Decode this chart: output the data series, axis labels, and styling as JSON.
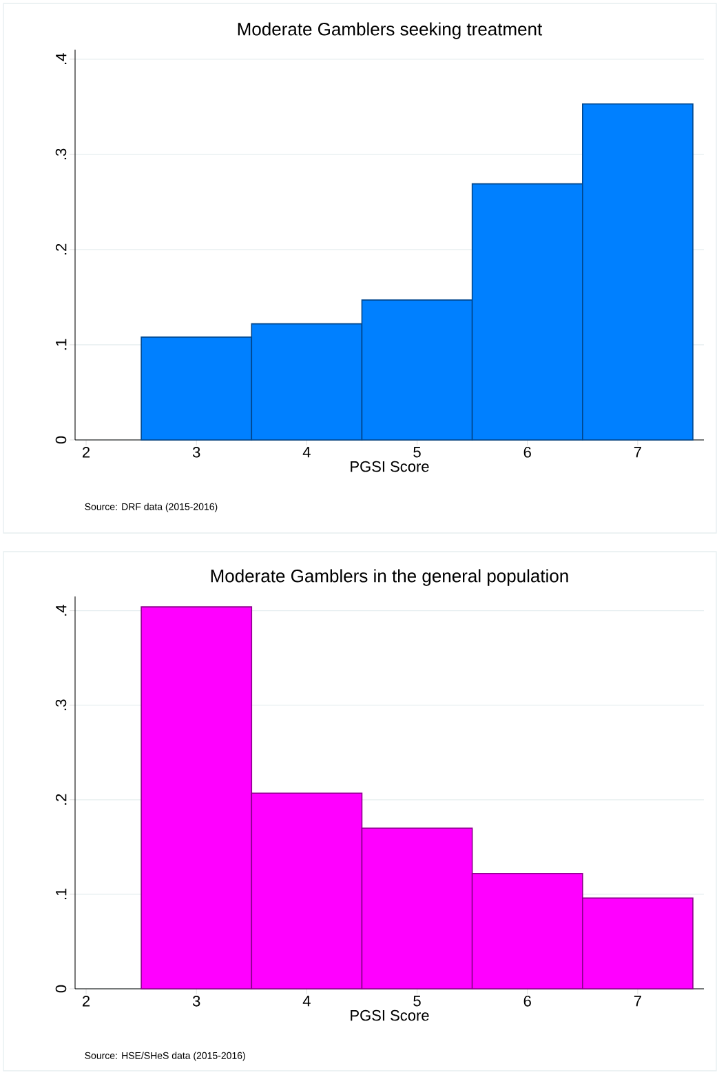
{
  "chart_data": [
    {
      "type": "histogram",
      "title": "Moderate Gamblers seeking treatment",
      "xlabel": "PGSI Score",
      "bins": [
        2.5,
        3.5,
        4.5,
        5.5,
        6.5,
        7.5
      ],
      "values": [
        0.108,
        0.122,
        0.147,
        0.269,
        0.353
      ],
      "color": "#0080ff",
      "xlim": [
        1.9,
        7.6
      ],
      "ylim": [
        0,
        0.41
      ],
      "xticks": [
        2,
        3,
        4,
        5,
        6,
        7
      ],
      "yticks": [
        0,
        {
          "value": 0.1,
          "label": ".1"
        },
        {
          "value": 0.2,
          "label": ".2"
        },
        {
          "value": 0.3,
          "label": ".3"
        },
        {
          "value": 0.4,
          "label": ".4"
        }
      ],
      "grid": "y",
      "annotations": [
        "Source: DRF data (2015-2016)"
      ]
    },
    {
      "type": "histogram",
      "title": "Moderate Gamblers in the general population",
      "xlabel": "PGSI Score",
      "bins": [
        2.5,
        3.5,
        4.5,
        5.5,
        6.5,
        7.5
      ],
      "values": [
        0.404,
        0.207,
        0.17,
        0.122,
        0.096
      ],
      "color": "#ff00ff",
      "xlim": [
        1.9,
        7.6
      ],
      "ylim": [
        0,
        0.415
      ],
      "xticks": [
        2,
        3,
        4,
        5,
        6,
        7
      ],
      "yticks": [
        0,
        {
          "value": 0.1,
          "label": ".1"
        },
        {
          "value": 0.2,
          "label": ".2"
        },
        {
          "value": 0.3,
          "label": ".3"
        },
        {
          "value": 0.4,
          "label": ".4"
        }
      ],
      "grid": "y",
      "annotations": [
        "Source: HSE/SHeS data (2015-2016)"
      ]
    }
  ]
}
